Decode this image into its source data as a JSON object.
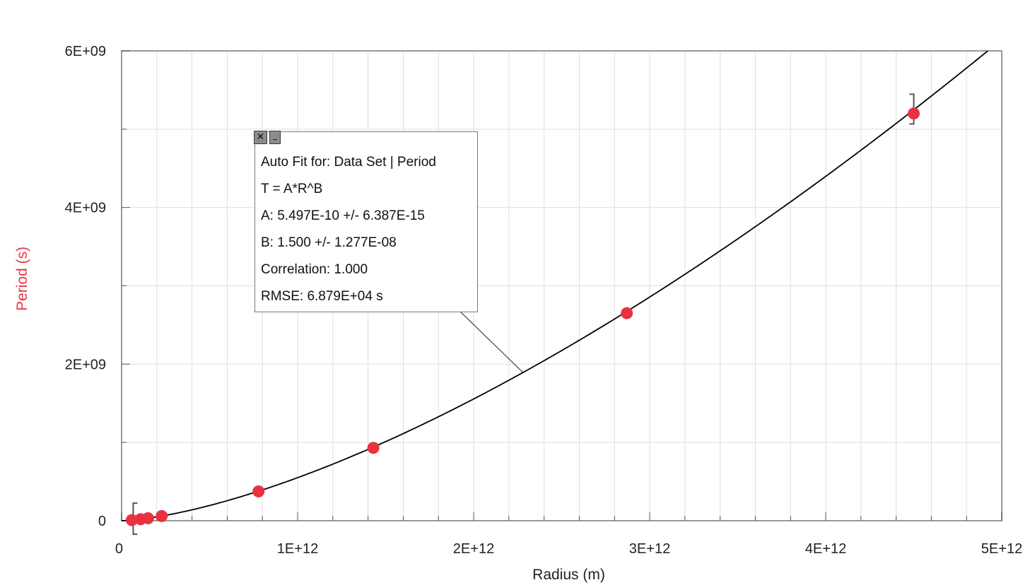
{
  "chart_data": {
    "type": "scatter",
    "xlabel": "Radius (m)",
    "ylabel": "Period (s)",
    "xlim": [
      0,
      5000000000000.0
    ],
    "ylim": [
      0,
      6000000000.0
    ],
    "x_ticks": [
      {
        "value": 0,
        "label": "0"
      },
      {
        "value": 1000000000000.0,
        "label": "1E+12"
      },
      {
        "value": 2000000000000.0,
        "label": "2E+12"
      },
      {
        "value": 3000000000000.0,
        "label": "3E+12"
      },
      {
        "value": 4000000000000.0,
        "label": "4E+12"
      },
      {
        "value": 5000000000000.0,
        "label": "5E+12"
      }
    ],
    "y_ticks": [
      {
        "value": 0,
        "label": "0"
      },
      {
        "value": 2000000000.0,
        "label": "2E+09"
      },
      {
        "value": 4000000000.0,
        "label": "4E+09"
      },
      {
        "value": 6000000000.0,
        "label": "6E+09"
      }
    ],
    "grid": true,
    "series": [
      {
        "points": [
          {
            "x": 58000000000.0,
            "y": 7600000.0
          },
          {
            "x": 108000000000.0,
            "y": 19400000.0
          },
          {
            "x": 150000000000.0,
            "y": 31600000.0
          },
          {
            "x": 228000000000.0,
            "y": 59400000.0
          },
          {
            "x": 778000000000.0,
            "y": 374000000.0
          },
          {
            "x": 1430000000000.0,
            "y": 930000000.0
          },
          {
            "x": 2870000000000.0,
            "y": 2650000000.0
          },
          {
            "x": 4500000000000.0,
            "y": 5200000000.0
          }
        ],
        "color": "#e8323f"
      }
    ],
    "fit": {
      "A": 5.497e-10,
      "B": 1.5,
      "x_range": [
        0,
        5000000000000.0
      ],
      "bracket_range": [
        58000000000.0,
        4500000000000.0
      ],
      "color": "#000000"
    }
  },
  "fit_box": {
    "close_label": "✕",
    "minimize_label": "_",
    "lines": [
      "Auto Fit for: Data Set | Period",
      "T = A*R^B",
      "A: 5.497E-10 +/- 6.387E-15",
      "B: 1.500 +/- 1.277E-08",
      "Correlation: 1.000",
      "RMSE: 6.879E+04 s"
    ]
  },
  "colors": {
    "ylabel": "#e8323f",
    "xlabel": "#222222",
    "grid": "#dedede",
    "axis": "#9a9a9a"
  }
}
